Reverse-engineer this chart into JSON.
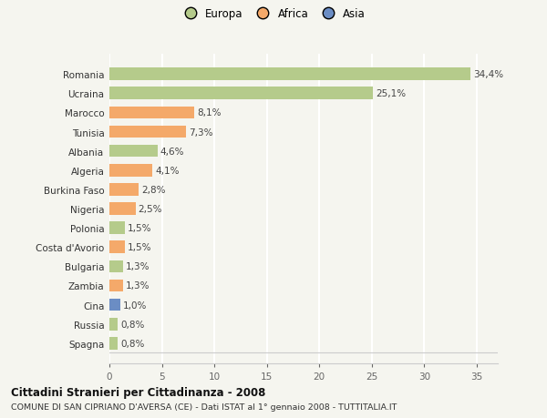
{
  "categories": [
    "Romania",
    "Ucraina",
    "Marocco",
    "Tunisia",
    "Albania",
    "Algeria",
    "Burkina Faso",
    "Nigeria",
    "Polonia",
    "Costa d'Avorio",
    "Bulgaria",
    "Zambia",
    "Cina",
    "Russia",
    "Spagna"
  ],
  "values": [
    34.4,
    25.1,
    8.1,
    7.3,
    4.6,
    4.1,
    2.8,
    2.5,
    1.5,
    1.5,
    1.3,
    1.3,
    1.0,
    0.8,
    0.8
  ],
  "labels": [
    "34,4%",
    "25,1%",
    "8,1%",
    "7,3%",
    "4,6%",
    "4,1%",
    "2,8%",
    "2,5%",
    "1,5%",
    "1,5%",
    "1,3%",
    "1,3%",
    "1,0%",
    "0,8%",
    "0,8%"
  ],
  "colors": [
    "#b5cb8b",
    "#b5cb8b",
    "#f4a96a",
    "#f4a96a",
    "#b5cb8b",
    "#f4a96a",
    "#f4a96a",
    "#f4a96a",
    "#b5cb8b",
    "#f4a96a",
    "#b5cb8b",
    "#f4a96a",
    "#6b8dc4",
    "#b5cb8b",
    "#b5cb8b"
  ],
  "legend": [
    {
      "label": "Europa",
      "color": "#b5cb8b"
    },
    {
      "label": "Africa",
      "color": "#f4a96a"
    },
    {
      "label": "Asia",
      "color": "#6b8dc4"
    }
  ],
  "xlim": [
    0,
    37
  ],
  "xticks": [
    0,
    5,
    10,
    15,
    20,
    25,
    30,
    35
  ],
  "title_bold": "Cittadini Stranieri per Cittadinanza - 2008",
  "subtitle": "COMUNE DI SAN CIPRIANO D'AVERSA (CE) - Dati ISTAT al 1° gennaio 2008 - TUTTITALIA.IT",
  "background_color": "#f5f5ef",
  "bar_height": 0.65,
  "grid_color": "#ffffff",
  "label_fontsize": 7.5,
  "tick_fontsize": 7.5,
  "ytick_fontsize": 7.5
}
